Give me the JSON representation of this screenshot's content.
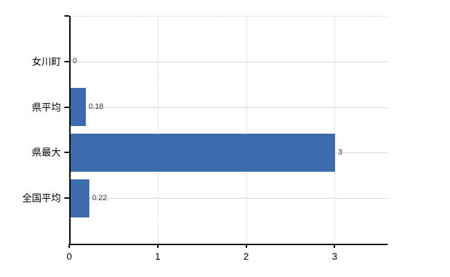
{
  "chart_data": {
    "type": "bar",
    "orientation": "horizontal",
    "title": "",
    "xlabel": "",
    "ylabel": "",
    "categories": [
      "女川町",
      "県平均",
      "県最大",
      "全国平均"
    ],
    "values": [
      0,
      0.18,
      3,
      0.22
    ],
    "value_labels": [
      "0",
      "0.18",
      "3",
      "0.22"
    ],
    "x_ticks": [
      0,
      1,
      2,
      3
    ],
    "x_tick_labels": [
      "0",
      "1",
      "2",
      "3"
    ],
    "xlim": [
      0,
      3.6
    ],
    "grid": true,
    "legend": false,
    "bar_color": "#3c6cad",
    "h_gridline_color": "#d3dcd1",
    "v_gridline_color": "#d9d5dc",
    "axis_color": "#000000",
    "text_color": "#000000",
    "value_text_color": "#333333",
    "background_color": "#ffffff"
  }
}
